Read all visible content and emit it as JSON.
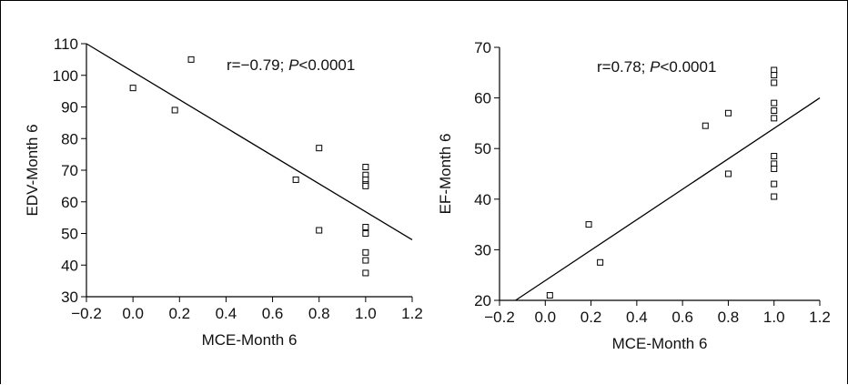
{
  "chart_data": [
    {
      "type": "scatter",
      "xlabel": "MCE-Month 6",
      "ylabel": "EDV-Month 6",
      "xlim": [
        -0.2,
        1.2
      ],
      "ylim": [
        30,
        110
      ],
      "xticks": [
        "-0.2",
        "0.0",
        "0.2",
        "0.4",
        "0.6",
        "0.8",
        "1.0",
        "1.2"
      ],
      "xtick_labels": [
        "−0.2",
        "0.0",
        "0.2",
        "0.4",
        "0.6",
        "0.8",
        "1.0",
        "1.2"
      ],
      "yticks": [
        "30",
        "40",
        "50",
        "60",
        "70",
        "80",
        "90",
        "100",
        "110"
      ],
      "annotation": {
        "prefix": "r=−0.79; ",
        "p_symbol": "P",
        "suffix": "<0.0001"
      },
      "points": [
        {
          "x": 0.0,
          "y": 96
        },
        {
          "x": 0.18,
          "y": 89
        },
        {
          "x": 0.25,
          "y": 105
        },
        {
          "x": 0.7,
          "y": 67
        },
        {
          "x": 0.8,
          "y": 77
        },
        {
          "x": 0.8,
          "y": 51
        },
        {
          "x": 1.0,
          "y": 71
        },
        {
          "x": 1.0,
          "y": 68.5
        },
        {
          "x": 1.0,
          "y": 67
        },
        {
          "x": 1.0,
          "y": 65.5
        },
        {
          "x": 1.0,
          "y": 65
        },
        {
          "x": 1.0,
          "y": 52
        },
        {
          "x": 1.0,
          "y": 50
        },
        {
          "x": 1.0,
          "y": 44
        },
        {
          "x": 1.0,
          "y": 41.5
        },
        {
          "x": 1.0,
          "y": 37.5
        }
      ],
      "fit_line": {
        "x": [
          -0.2,
          1.2
        ],
        "y": [
          110,
          48
        ]
      },
      "grid": false
    },
    {
      "type": "scatter",
      "xlabel": "MCE-Month 6",
      "ylabel": "EF-Month 6",
      "xlim": [
        -0.2,
        1.2
      ],
      "ylim": [
        20,
        70
      ],
      "xticks": [
        "-0.2",
        "0.0",
        "0.2",
        "0.4",
        "0.6",
        "0.8",
        "1.0",
        "1.2"
      ],
      "xtick_labels": [
        "−0.2",
        "0.0",
        "0.2",
        "0.4",
        "0.6",
        "0.8",
        "1.0",
        "1.2"
      ],
      "yticks": [
        "20",
        "30",
        "40",
        "50",
        "60",
        "70"
      ],
      "annotation": {
        "prefix": "r=0.78; ",
        "p_symbol": "P",
        "suffix": "<0.0001"
      },
      "points": [
        {
          "x": 0.02,
          "y": 21
        },
        {
          "x": 0.19,
          "y": 35
        },
        {
          "x": 0.24,
          "y": 27.5
        },
        {
          "x": 0.7,
          "y": 54.5
        },
        {
          "x": 0.8,
          "y": 57
        },
        {
          "x": 0.8,
          "y": 45
        },
        {
          "x": 1.0,
          "y": 65.5
        },
        {
          "x": 1.0,
          "y": 64.5
        },
        {
          "x": 1.0,
          "y": 63
        },
        {
          "x": 1.0,
          "y": 59
        },
        {
          "x": 1.0,
          "y": 57.5
        },
        {
          "x": 1.0,
          "y": 56
        },
        {
          "x": 1.0,
          "y": 48.5
        },
        {
          "x": 1.0,
          "y": 47
        },
        {
          "x": 1.0,
          "y": 46
        },
        {
          "x": 1.0,
          "y": 43
        },
        {
          "x": 1.0,
          "y": 40.5
        }
      ],
      "fit_line": {
        "x": [
          -0.13,
          1.2
        ],
        "y": [
          20,
          60
        ]
      },
      "grid": false
    }
  ]
}
